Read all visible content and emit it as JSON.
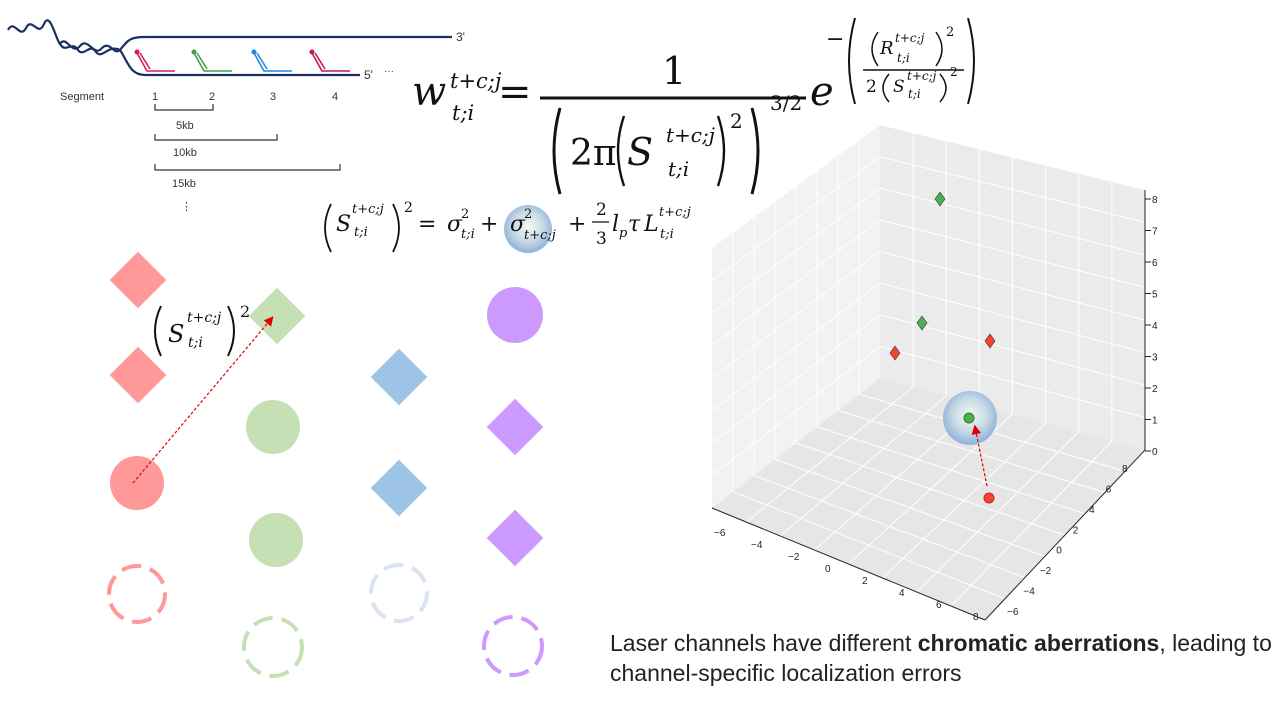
{
  "dna": {
    "end3": "3'",
    "end5": "5'",
    "ellipsis": "···",
    "segment_label": "Segment",
    "segments": [
      "1",
      "2",
      "3",
      "4"
    ],
    "spans": [
      "5kb",
      "10kb",
      "15kb"
    ],
    "more": "⋮"
  },
  "equations": {
    "weight": [
      "w",
      "t+c;j",
      "t;i",
      "=",
      "1",
      "2π",
      "S",
      "t+c;j",
      "t;i",
      "2",
      "3/2",
      "e",
      "−",
      "R",
      "t+c;j",
      "t;i",
      "2",
      "2",
      "S",
      "t+c;j",
      "t;i",
      "2"
    ],
    "variance": [
      "S",
      "t+c;j",
      "t;i",
      "2",
      "=",
      "σ",
      "2",
      "t;i",
      "+",
      "σ",
      "2",
      "t+c;j",
      "+",
      "2",
      "3",
      "l",
      "p",
      "τ",
      "L",
      "t+c;j",
      "t;i"
    ],
    "label": [
      "S",
      "t+c;j",
      "t;i",
      "2"
    ]
  },
  "plot3d": {
    "z_ticks": [
      "0",
      "1",
      "2",
      "3",
      "4",
      "5",
      "6",
      "7",
      "8"
    ],
    "x_ticks": [
      "−6",
      "−4",
      "−2",
      "0",
      "2",
      "4",
      "6",
      "8"
    ],
    "y_ticks": [
      "8",
      "6",
      "4",
      "2",
      "0",
      "−2",
      "−4",
      "−6"
    ]
  },
  "caption": {
    "line1": [
      "Laser channels have different ",
      "chromatic aberrations",
      ", leading to"
    ],
    "line2": "channel-specific localization errors"
  }
}
